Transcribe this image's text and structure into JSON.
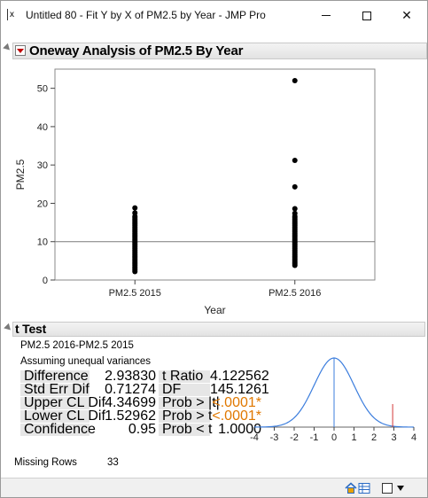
{
  "window": {
    "app_icon_text": "x",
    "title": "Untitled 80 - Fit Y by X of PM2.5 by Year - JMP Pro",
    "min_icon": "minimize-icon",
    "max_icon": "maximize-icon",
    "close_icon": "close-icon",
    "close_glyph": "✕"
  },
  "report": {
    "title": "Oneway Analysis of PM2.5 By Year"
  },
  "chart_data": {
    "type": "scatter",
    "xlabel": "Year",
    "ylabel": "PM2.5",
    "categories": [
      "PM2.5 2015",
      "PM2.5 2016"
    ],
    "ylim": [
      0,
      55
    ],
    "yticks": [
      0,
      10,
      20,
      30,
      40,
      50
    ],
    "grand_mean": 10,
    "series": [
      {
        "values": [
          2.2,
          2.6,
          3.0,
          3.4,
          3.8,
          4.2,
          4.6,
          5.0,
          5.4,
          5.8,
          6.2,
          6.6,
          7.0,
          7.4,
          7.8,
          8.2,
          8.6,
          9.0,
          9.4,
          9.8,
          10.2,
          10.6,
          11.0,
          11.4,
          11.8,
          12.2,
          12.6,
          13.0,
          13.4,
          13.8,
          14.2,
          14.6,
          15.0,
          15.4,
          15.8,
          16.2,
          16.6,
          17.5,
          18.8
        ]
      },
      {
        "values": [
          3.8,
          4.2,
          4.6,
          5.0,
          5.4,
          5.8,
          6.2,
          6.6,
          7.0,
          7.4,
          7.8,
          8.2,
          8.6,
          9.0,
          9.4,
          9.8,
          10.2,
          10.6,
          11.0,
          11.4,
          11.8,
          12.2,
          12.6,
          13.0,
          13.4,
          13.8,
          14.2,
          14.6,
          15.0,
          15.4,
          15.8,
          16.2,
          16.6,
          17.4,
          18.6,
          24.3,
          31.2,
          52.0
        ]
      }
    ]
  },
  "ttest": {
    "title": "t Test",
    "comparison": "PM2.5 2016-PM2.5 2015",
    "assumption": "Assuming unequal variances",
    "rows": [
      {
        "label": "Difference",
        "value": "2.93830",
        "label2": "t Ratio",
        "value2": "4.122562",
        "highlight": false
      },
      {
        "label": "Std Err Dif",
        "value": "0.71274",
        "label2": "DF",
        "value2": "145.1261",
        "highlight": false
      },
      {
        "label": "Upper CL Dif",
        "value": "4.34699",
        "label2": "Prob > |t|",
        "value2": "<.0001*",
        "highlight": true
      },
      {
        "label": "Lower CL Dif",
        "value": "1.52962",
        "label2": "Prob > t",
        "value2": "<.0001*",
        "highlight": true
      },
      {
        "label": "Confidence",
        "value": "0.95",
        "label2": "Prob < t",
        "value2": "1.0000",
        "highlight": false
      }
    ],
    "distribution_plot": {
      "type": "line",
      "xlim": [
        -4,
        4
      ],
      "xticks": [
        "-4",
        "-3",
        "-2",
        "-1",
        "0",
        "1",
        "2",
        "3",
        "4"
      ],
      "observed_t": 2.9383
    }
  },
  "missing": {
    "label": "Missing Rows",
    "value": "33"
  },
  "statusbar": {
    "home_icon": "home-icon",
    "table_icon": "table-icon",
    "checkbox_icon": "checkbox-icon",
    "dropdown_icon": "dropdown-arrow-icon"
  }
}
